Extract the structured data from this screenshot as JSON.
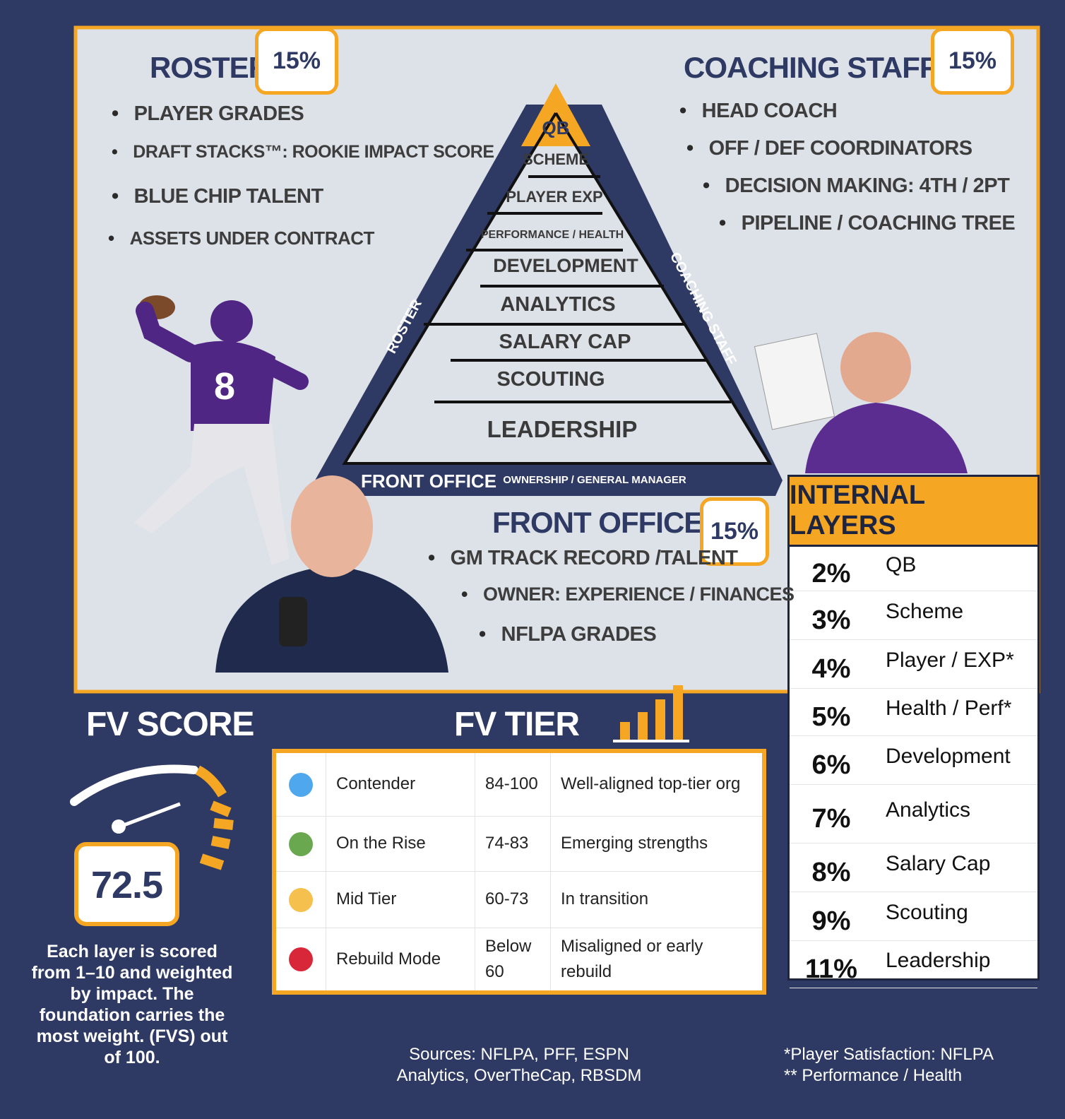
{
  "roster": {
    "title": "ROSTER",
    "weight": "15%",
    "items": [
      "PLAYER GRADES",
      "DRAFT STACKS™: ROOKIE IMPACT SCORE",
      "BLUE CHIP TALENT",
      "ASSETS UNDER CONTRACT"
    ]
  },
  "coaching_staff": {
    "title": "COACHING STAFF",
    "weight": "15%",
    "items": [
      "HEAD COACH",
      "OFF / DEF COORDINATORS",
      "DECISION MAKING: 4TH / 2PT",
      "PIPELINE / COACHING TREE"
    ]
  },
  "pyramid": {
    "apex": "QB",
    "layers": [
      "SCHEME",
      "PLAYER EXP",
      "PERFORMANCE / HEALTH",
      "DEVELOPMENT",
      "ANALYTICS",
      "SALARY CAP",
      "SCOUTING",
      "LEADERSHIP"
    ],
    "left_side": "ROSTER",
    "right_side": "COACHING STAFF",
    "base": "FRONT OFFICE",
    "base_sub": "OWNERSHIP / GENERAL MANAGER"
  },
  "front_office": {
    "title": "FRONT OFFICE",
    "weight": "15%",
    "items": [
      "GM TRACK RECORD /TALENT",
      "OWNER: EXPERIENCE / FINANCES",
      "NFLPA GRADES"
    ]
  },
  "fv_score": {
    "title": "FV SCORE",
    "score": "72.5",
    "note": "Each layer is scored from 1–10 and weighted by impact. The foundation carries the most weight. (FVS) out of 100."
  },
  "fv_tier": {
    "title": "FV TIER",
    "rows": [
      {
        "color": "#4fa8ee",
        "tier": "Contender",
        "range": "84-100",
        "description": "Well-aligned top-tier org"
      },
      {
        "color": "#6aa84f",
        "tier": "On the Rise",
        "range": "74-83",
        "description": "Emerging strengths"
      },
      {
        "color": "#f6c04e",
        "tier": "Mid Tier",
        "range": "60-73",
        "description": "In transition"
      },
      {
        "color": "#d9273a",
        "tier": "Rebuild Mode",
        "range": "Below 60",
        "description": "Misaligned or early rebuild"
      }
    ]
  },
  "internal_layers": {
    "title": "INTERNAL LAYERS",
    "rows": [
      {
        "weight": "2%",
        "layer": "QB"
      },
      {
        "weight": "3%",
        "layer": "Scheme"
      },
      {
        "weight": "4%",
        "layer": "Player / EXP*"
      },
      {
        "weight": "5%",
        "layer": "Health / Perf*"
      },
      {
        "weight": "6%",
        "layer": "Development"
      },
      {
        "weight": "7%",
        "layer": "Analytics"
      },
      {
        "weight": "8%",
        "layer": "Salary Cap"
      },
      {
        "weight": "9%",
        "layer": "Scouting"
      },
      {
        "weight": "11%",
        "layer": "Leadership"
      }
    ]
  },
  "sources": "Sources: NFLPA, PFF, ESPN Analytics, OverTheCap, RBSDM",
  "footnotes": [
    "*Player Satisfaction: NFLPA",
    "** Performance / Health"
  ]
}
